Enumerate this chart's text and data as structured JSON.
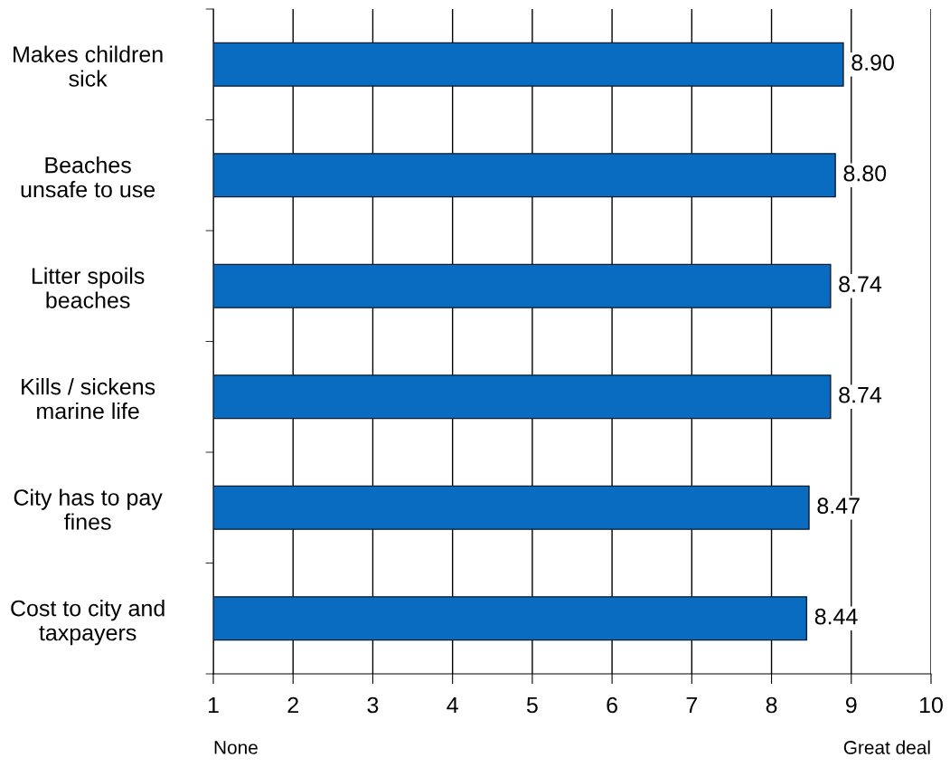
{
  "chart_data": {
    "type": "bar",
    "orientation": "horizontal",
    "categories": [
      "Makes children\nsick",
      "Beaches\nunsafe to use",
      "Litter spoils\nbeaches",
      "Kills / sickens\nmarine life",
      "City has to pay\nfines",
      "Cost to city and\ntaxpayers"
    ],
    "values": [
      8.9,
      8.8,
      8.74,
      8.74,
      8.47,
      8.44
    ],
    "value_labels": [
      "8.90",
      "8.80",
      "8.74",
      "8.74",
      "8.47",
      "8.44"
    ],
    "color": "#0a6cc0",
    "xlim": [
      1,
      10
    ],
    "xticks": [
      1,
      2,
      3,
      4,
      5,
      6,
      7,
      8,
      9,
      10
    ],
    "grid": "x",
    "annotations": [
      "None",
      "Great deal"
    ]
  }
}
